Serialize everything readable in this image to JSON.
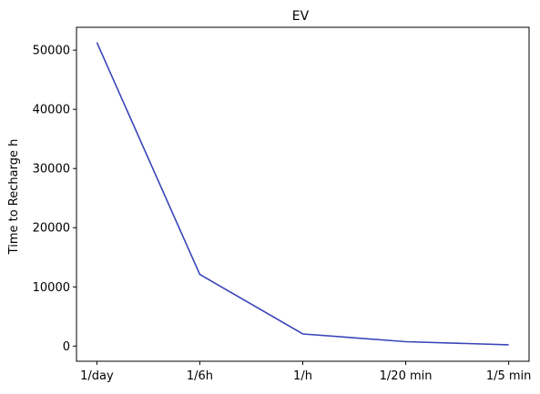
{
  "chart_data": {
    "type": "line",
    "title": "EV",
    "xlabel": "",
    "ylabel": "Time to Recharge h",
    "categories": [
      "1/day",
      "1/6h",
      "1/h",
      "1/20 min",
      "1/5 min"
    ],
    "series": [
      {
        "values": [
          51300,
          12100,
          2050,
          750,
          220
        ],
        "color": "#3a45b8"
      }
    ],
    "yticks": [
      0,
      10000,
      20000,
      30000,
      40000,
      50000
    ],
    "ylim": [
      -2563,
      53863
    ],
    "grid": false,
    "legend": "none"
  }
}
